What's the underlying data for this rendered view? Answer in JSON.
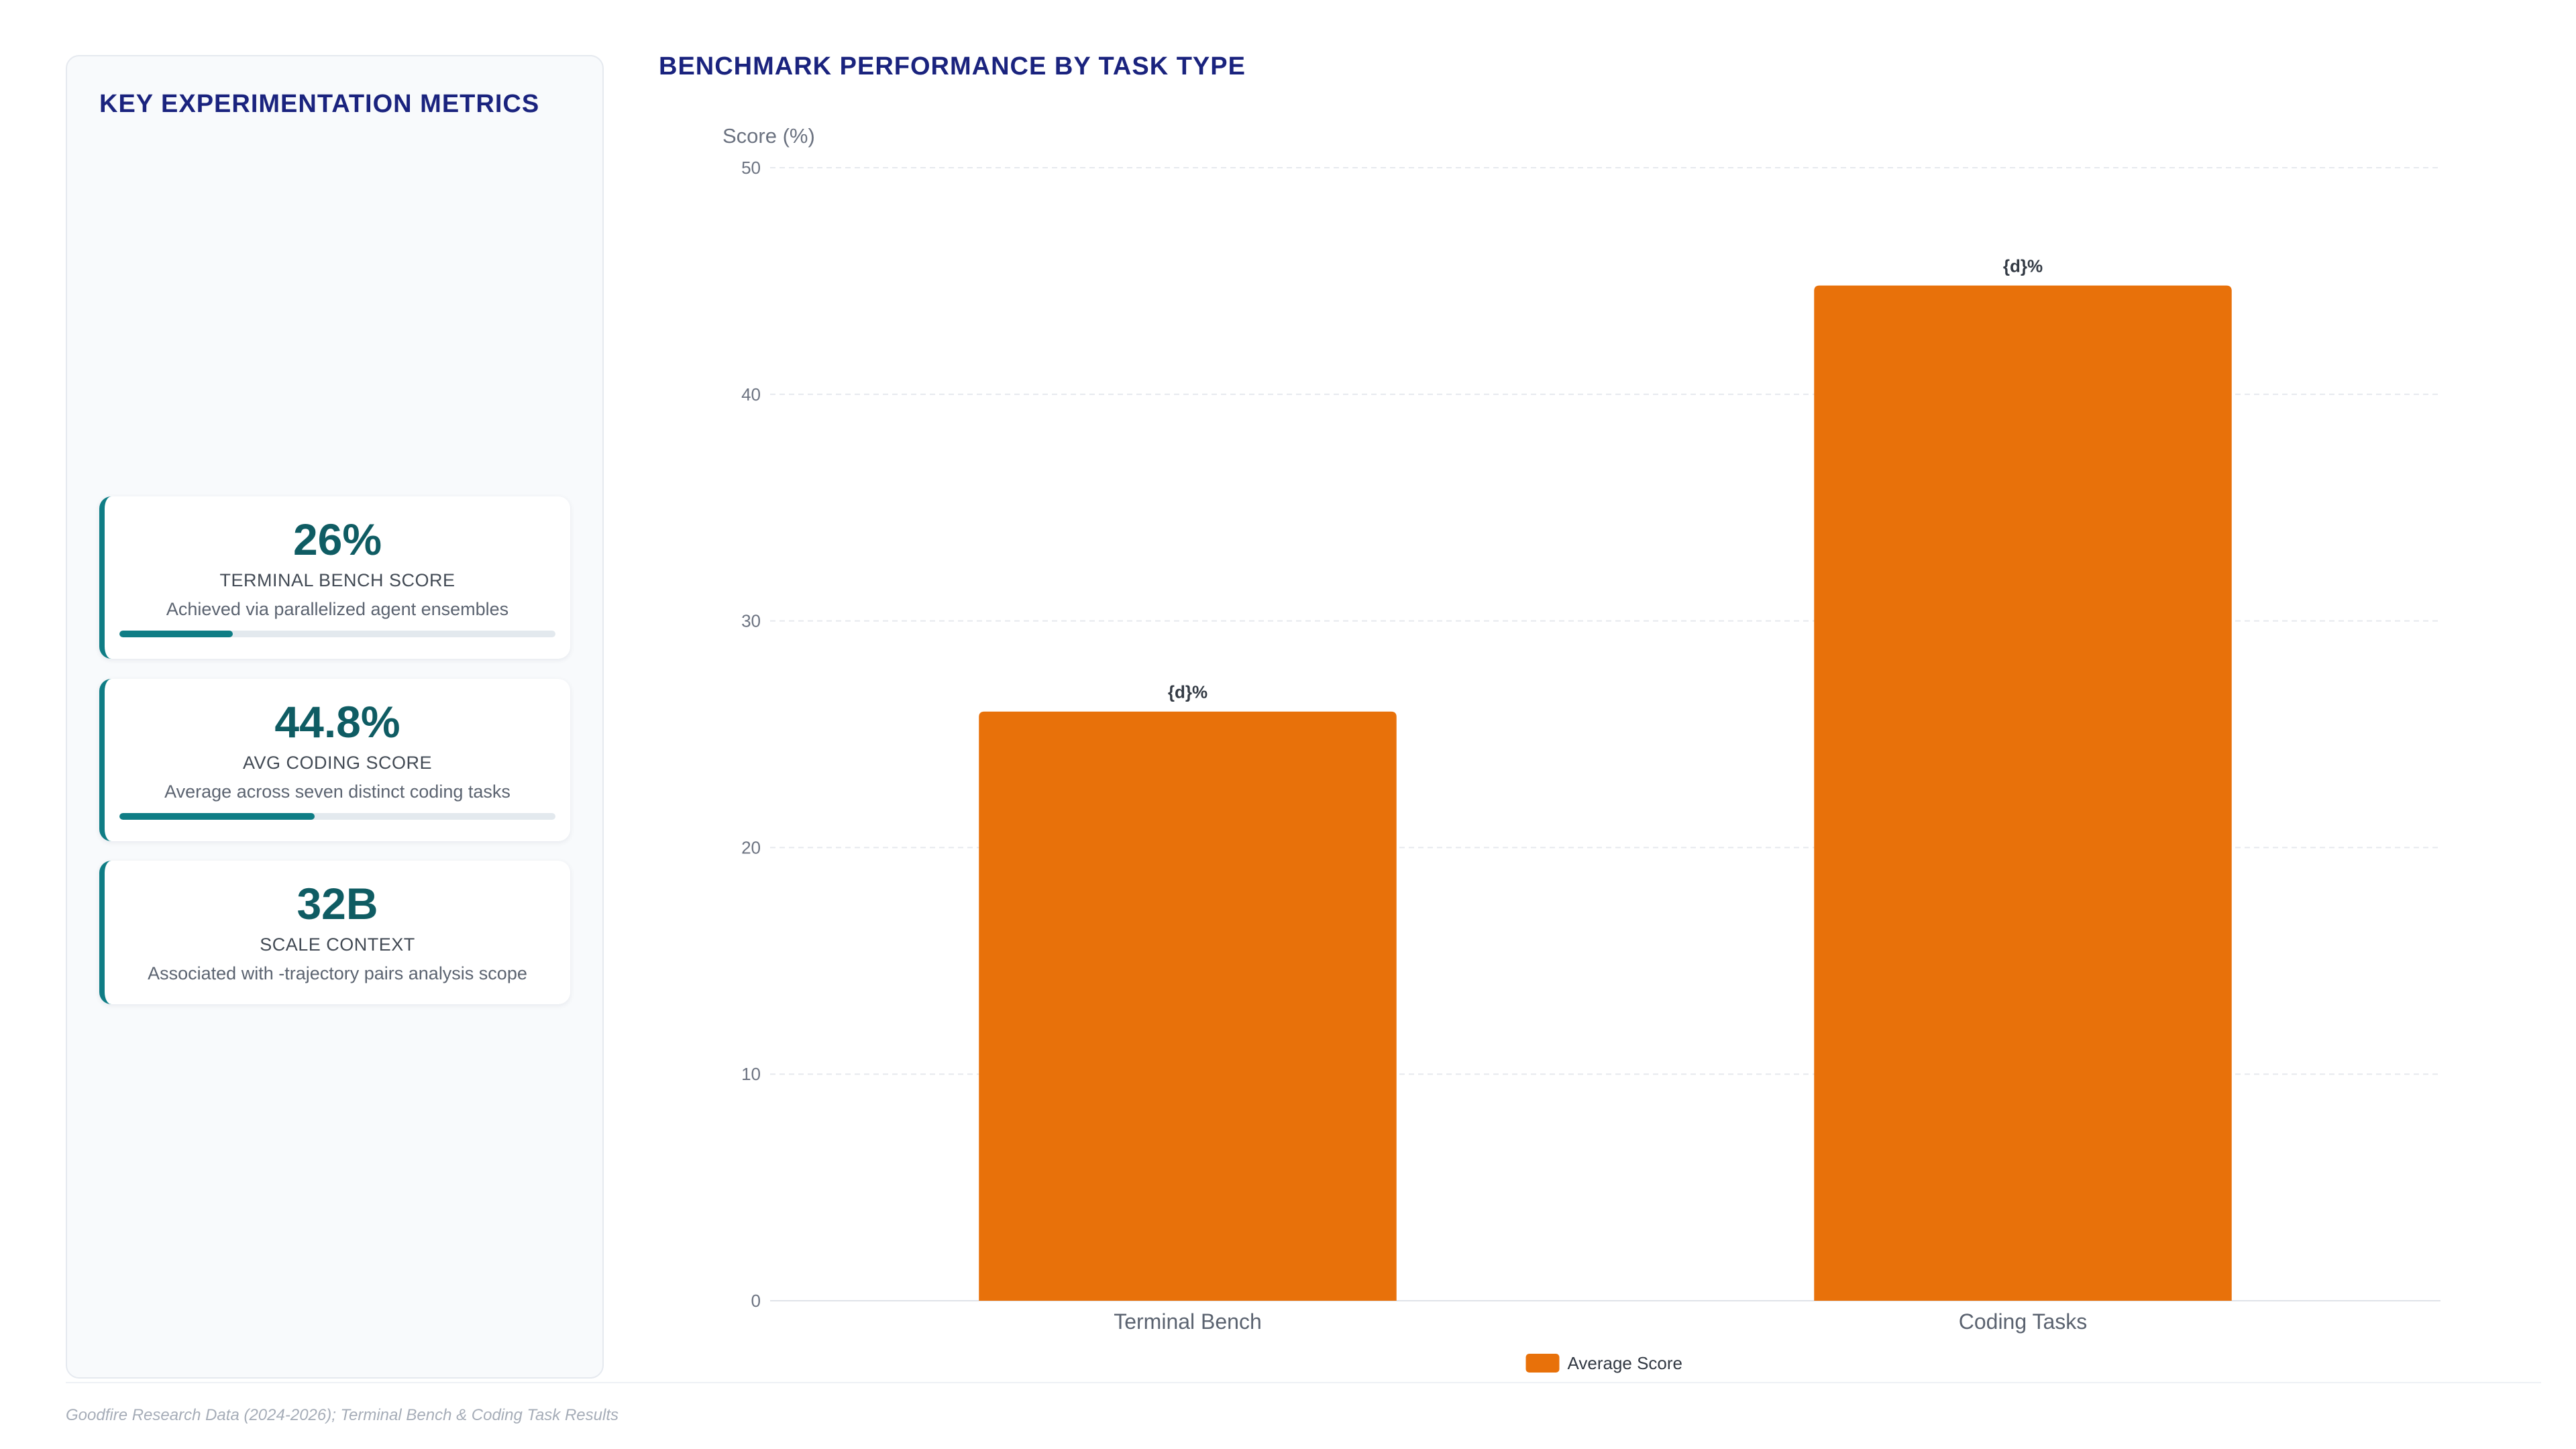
{
  "left_panel": {
    "title": "KEY EXPERIMENTATION METRICS",
    "metrics": [
      {
        "value": "26%",
        "label": "TERMINAL BENCH SCORE",
        "description": "Achieved via parallelized agent ensembles",
        "progress": 0.26
      },
      {
        "value": "44.8%",
        "label": "AVG CODING SCORE",
        "description": "Average across seven distinct coding tasks",
        "progress": 0.448
      },
      {
        "value": "32B",
        "label": "SCALE CONTEXT",
        "description": "Associated with -trajectory pairs analysis scope"
      }
    ],
    "accent_color": "#0f7d85"
  },
  "chart_data": {
    "type": "bar",
    "title": "BENCHMARK PERFORMANCE BY TASK TYPE",
    "ylabel": "Score (%)",
    "xlabel": "",
    "categories": [
      "Terminal Bench",
      "Coding Tasks"
    ],
    "series": [
      {
        "name": "Average Score",
        "values": [
          26,
          44.8
        ],
        "color": "#e8710a"
      }
    ],
    "data_labels": [
      "{d}%",
      "{d}%"
    ],
    "yticks": [
      0,
      10,
      20,
      30,
      40,
      50
    ],
    "ylim": [
      0,
      50
    ],
    "grid": true,
    "legend_position": "bottom-center"
  },
  "footer": {
    "source": "Goodfire Research Data (2024-2026); Terminal Bench & Coding Task Results"
  }
}
